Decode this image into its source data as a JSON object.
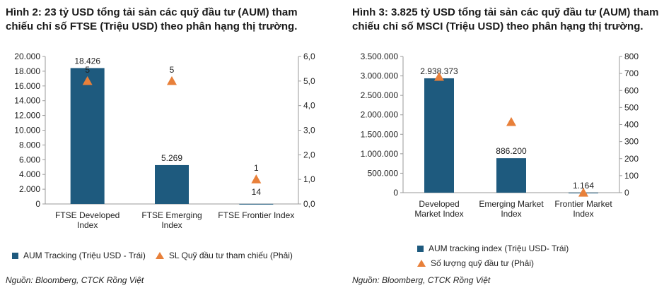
{
  "colors": {
    "bar": "#1e5a7e",
    "marker": "#e8803a",
    "axis": "#999999"
  },
  "chart_data": [
    {
      "type": "bar",
      "title": "Hình 2: 23 tỷ USD tổng tải sản các quỹ đầu tư (AUM) tham chiếu chỉ số FTSE (Triệu USD) theo phân hạng thị trường.",
      "categories": [
        "FTSE Developed Index",
        "FTSE Emerging Index",
        "FTSE Frontier Index"
      ],
      "category_lines": [
        [
          "FTSE Developed",
          "Index"
        ],
        [
          "FTSE Emerging",
          "Index"
        ],
        [
          "FTSE Frontier Index"
        ]
      ],
      "series": [
        {
          "name": "AUM Tracking (Triệu USD - Trái)",
          "axis": "left",
          "type": "bar",
          "values": [
            18426,
            5269,
            14
          ],
          "labels": [
            "18.426",
            "5.269",
            "14"
          ]
        },
        {
          "name": "SL Quỹ đầu tư tham chiếu (Phải)",
          "axis": "right",
          "type": "marker",
          "values": [
            5,
            5,
            1
          ],
          "labels": [
            "5",
            "5",
            "1"
          ]
        }
      ],
      "ylim_left": [
        0,
        20000
      ],
      "yticks_left": [
        "0",
        "2.000",
        "4.000",
        "6.000",
        "8.000",
        "10.000",
        "12.000",
        "14.000",
        "16.000",
        "18.000",
        "20.000"
      ],
      "ylim_right": [
        0,
        6
      ],
      "yticks_right": [
        "0,0",
        "1,0",
        "2,0",
        "3,0",
        "4,0",
        "5,0",
        "6,0"
      ],
      "legend": "bottom",
      "grid": false,
      "source": "Nguồn: Bloomberg, CTCK Rồng Việt"
    },
    {
      "type": "bar",
      "title": "Hình 3: 3.825 tỷ USD tổng tải sản các quỹ đầu tư (AUM) tham chiếu chỉ số MSCI (Triệu USD) theo phân hạng thị trường.",
      "categories": [
        "Developed Market Index",
        "Emerging Market Index",
        "Frontier Market Index"
      ],
      "category_lines": [
        [
          "Developed",
          "Market Index"
        ],
        [
          "Emerging Market",
          "Index"
        ],
        [
          "Frontier Market",
          "Index"
        ]
      ],
      "series": [
        {
          "name": "AUM tracking index (Triệu USD- Trái)",
          "axis": "left",
          "type": "bar",
          "values": [
            2938373,
            886200,
            1164
          ],
          "labels": [
            "2.938.373",
            "886.200",
            "1.164"
          ]
        },
        {
          "name": "Số lượng quỹ đầu tư (Phải)",
          "axis": "right",
          "type": "marker",
          "values": [
            680,
            415,
            0
          ],
          "labels": [
            "",
            "",
            ""
          ]
        }
      ],
      "ylim_left": [
        0,
        3500000
      ],
      "yticks_left": [
        "0",
        "500.000",
        "1.000.000",
        "1.500.000",
        "2.000.000",
        "2.500.000",
        "3.000.000",
        "3.500.000"
      ],
      "ylim_right": [
        0,
        800
      ],
      "yticks_right": [
        "0",
        "100",
        "200",
        "300",
        "400",
        "500",
        "600",
        "700",
        "800"
      ],
      "legend": "bottom",
      "grid": false,
      "source": "Nguồn: Bloomberg, CTCK Rồng Việt"
    }
  ]
}
